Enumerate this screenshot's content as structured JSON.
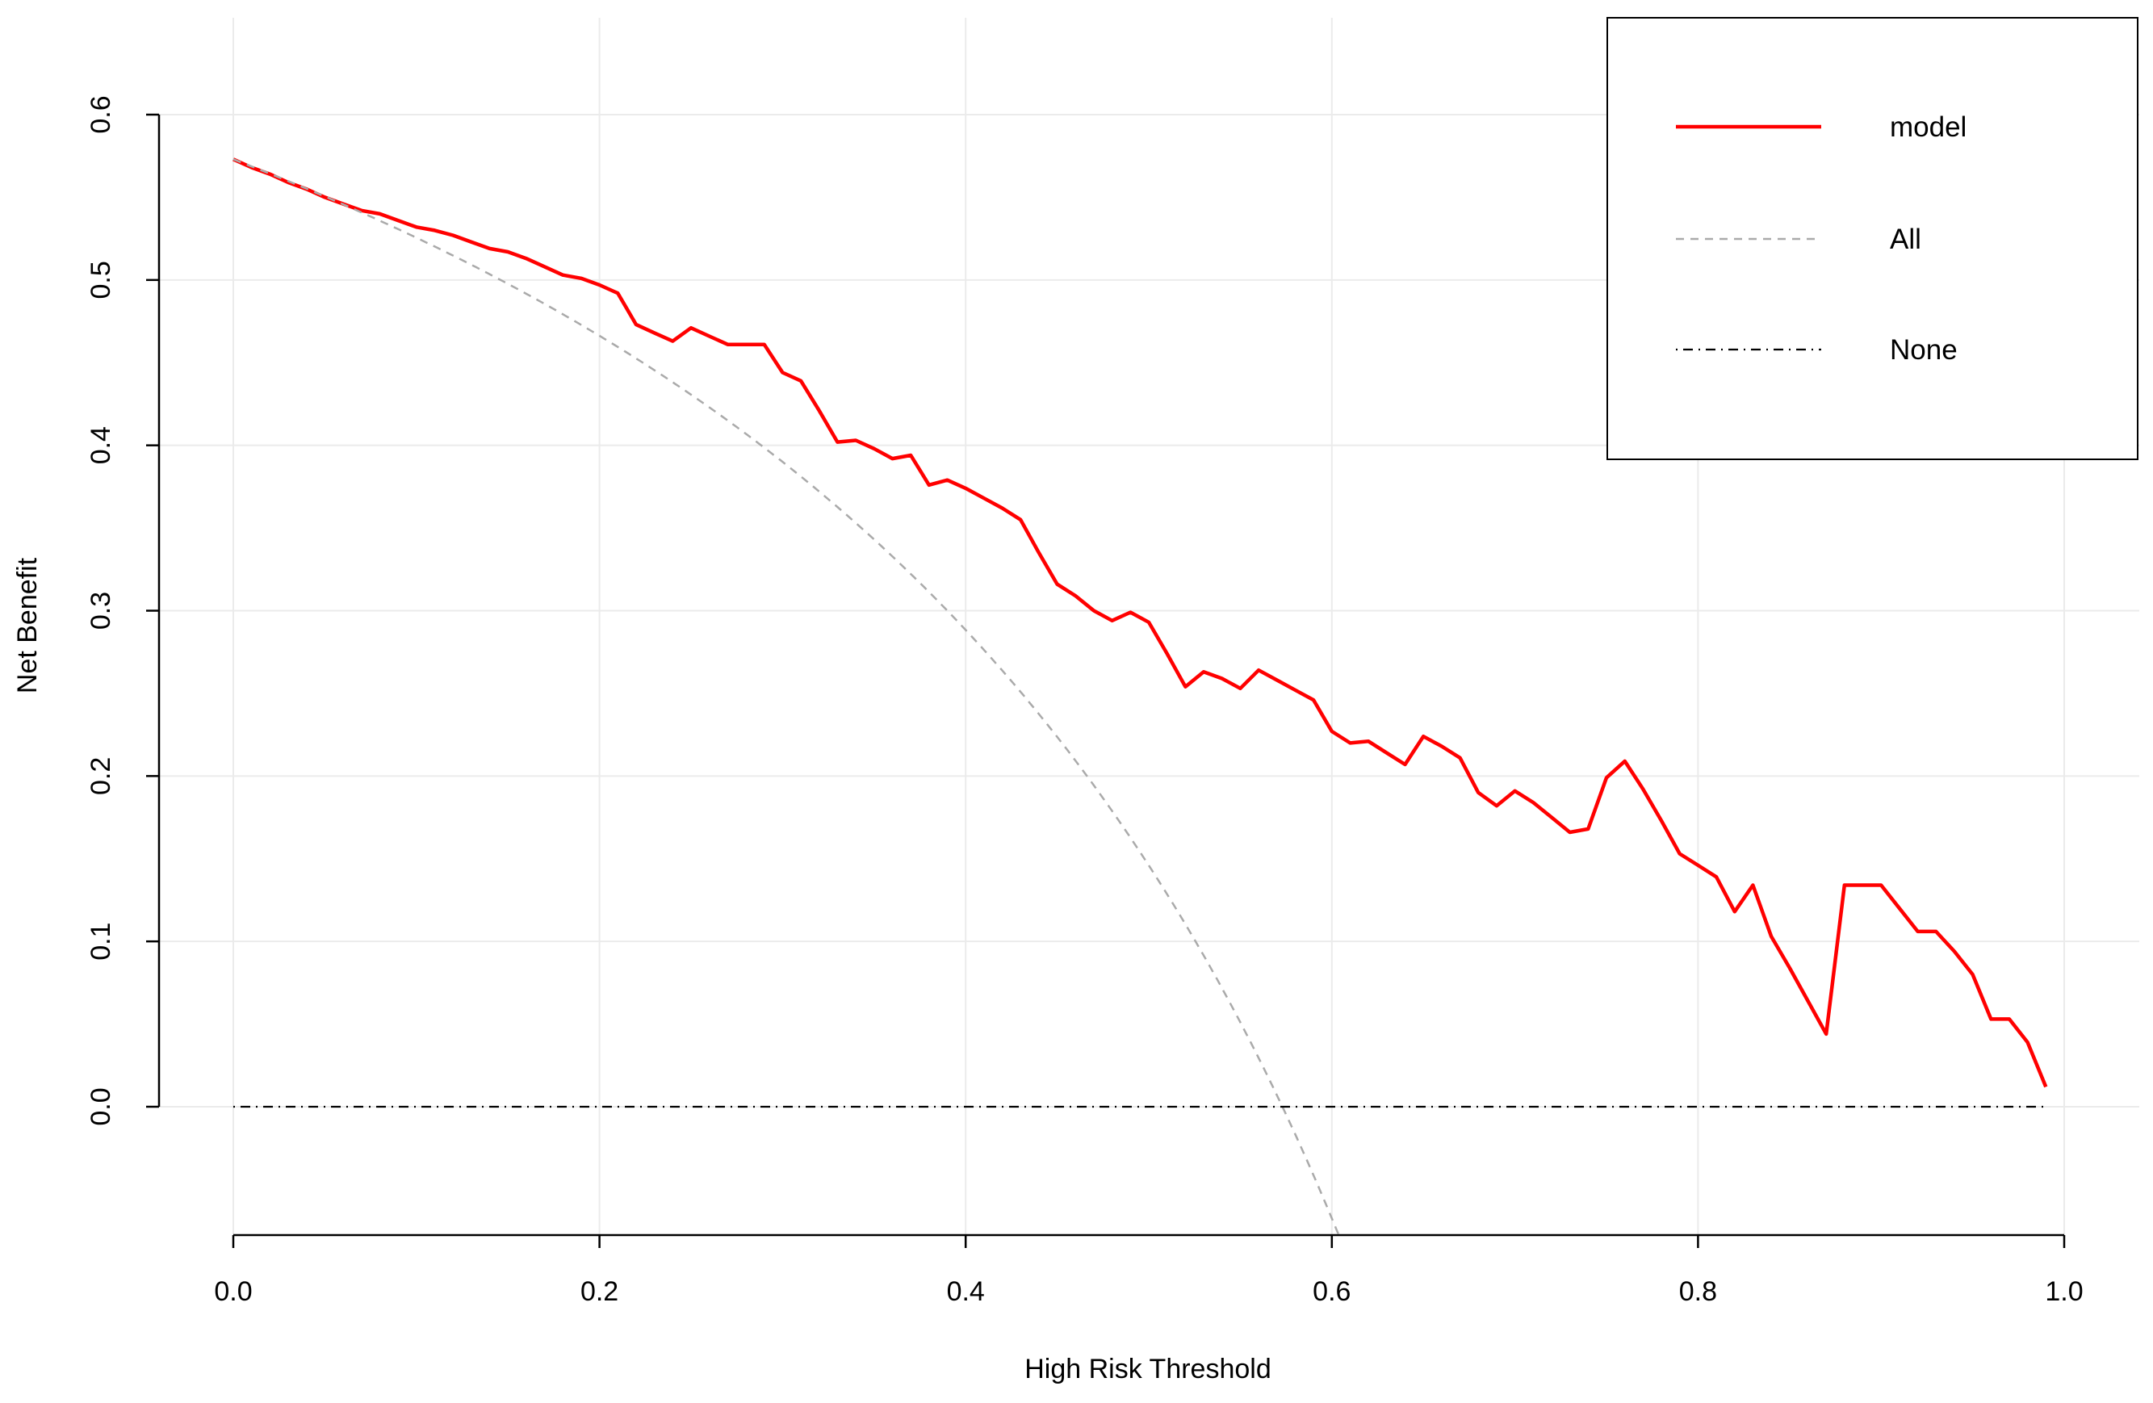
{
  "chart_data": {
    "type": "line",
    "title": "",
    "xlabel": "High Risk Threshold",
    "ylabel": "Net Benefit",
    "xlim": [
      0,
      1
    ],
    "ylim": [
      -0.075,
      0.66
    ],
    "grid": true,
    "legend_position": "top-right",
    "x_ticks": [
      "0.0",
      "0.2",
      "0.4",
      "0.6",
      "0.8",
      "1.0"
    ],
    "y_ticks": [
      "0.0",
      "0.1",
      "0.2",
      "0.3",
      "0.4",
      "0.5",
      "0.6"
    ],
    "series": [
      {
        "name": "model",
        "color": "#ff0000",
        "style": "solid",
        "x": [
          0.0,
          0.01,
          0.02,
          0.03,
          0.04,
          0.05,
          0.06,
          0.07,
          0.08,
          0.09,
          0.1,
          0.11,
          0.12,
          0.13,
          0.14,
          0.15,
          0.16,
          0.17,
          0.18,
          0.19,
          0.2,
          0.21,
          0.22,
          0.23,
          0.24,
          0.25,
          0.26,
          0.27,
          0.28,
          0.29,
          0.3,
          0.31,
          0.32,
          0.33,
          0.34,
          0.35,
          0.36,
          0.37,
          0.38,
          0.39,
          0.4,
          0.41,
          0.42,
          0.43,
          0.44,
          0.45,
          0.46,
          0.47,
          0.48,
          0.49,
          0.5,
          0.51,
          0.52,
          0.53,
          0.54,
          0.55,
          0.56,
          0.57,
          0.58,
          0.59,
          0.6,
          0.61,
          0.62,
          0.63,
          0.64,
          0.65,
          0.66,
          0.67,
          0.68,
          0.69,
          0.7,
          0.71,
          0.72,
          0.73,
          0.74,
          0.75,
          0.76,
          0.77,
          0.78,
          0.79,
          0.8,
          0.81,
          0.82,
          0.83,
          0.84,
          0.85,
          0.86,
          0.87,
          0.88,
          0.89,
          0.9,
          0.91,
          0.92,
          0.93,
          0.94,
          0.95,
          0.96,
          0.97,
          0.98,
          0.99
        ],
        "values": [
          0.573,
          0.568,
          0.564,
          0.559,
          0.555,
          0.55,
          0.546,
          0.542,
          0.54,
          0.536,
          0.532,
          0.53,
          0.527,
          0.523,
          0.519,
          0.517,
          0.513,
          0.508,
          0.503,
          0.501,
          0.497,
          0.492,
          0.473,
          0.468,
          0.463,
          0.471,
          0.466,
          0.461,
          0.461,
          0.461,
          0.444,
          0.439,
          0.421,
          0.402,
          0.403,
          0.398,
          0.392,
          0.394,
          0.376,
          0.379,
          0.374,
          0.368,
          0.362,
          0.355,
          0.335,
          0.316,
          0.309,
          0.3,
          0.294,
          0.299,
          0.293,
          0.274,
          0.254,
          0.263,
          0.259,
          0.253,
          0.264,
          0.258,
          0.252,
          0.246,
          0.227,
          0.22,
          0.221,
          0.214,
          0.207,
          0.224,
          0.218,
          0.211,
          0.19,
          0.182,
          0.191,
          0.184,
          0.175,
          0.166,
          0.168,
          0.199,
          0.209,
          0.192,
          0.173,
          0.153,
          0.146,
          0.139,
          0.118,
          0.134,
          0.103,
          0.084,
          0.064,
          0.044,
          0.134,
          0.134,
          0.134,
          0.12,
          0.106,
          0.106,
          0.094,
          0.08,
          0.053,
          0.053,
          0.039,
          0.012
        ]
      },
      {
        "name": "All",
        "color": "#aaaaaa",
        "style": "dashed",
        "prevalence": 0.573
      },
      {
        "name": "None",
        "color": "#000000",
        "style": "dotdash",
        "value": 0
      }
    ]
  }
}
